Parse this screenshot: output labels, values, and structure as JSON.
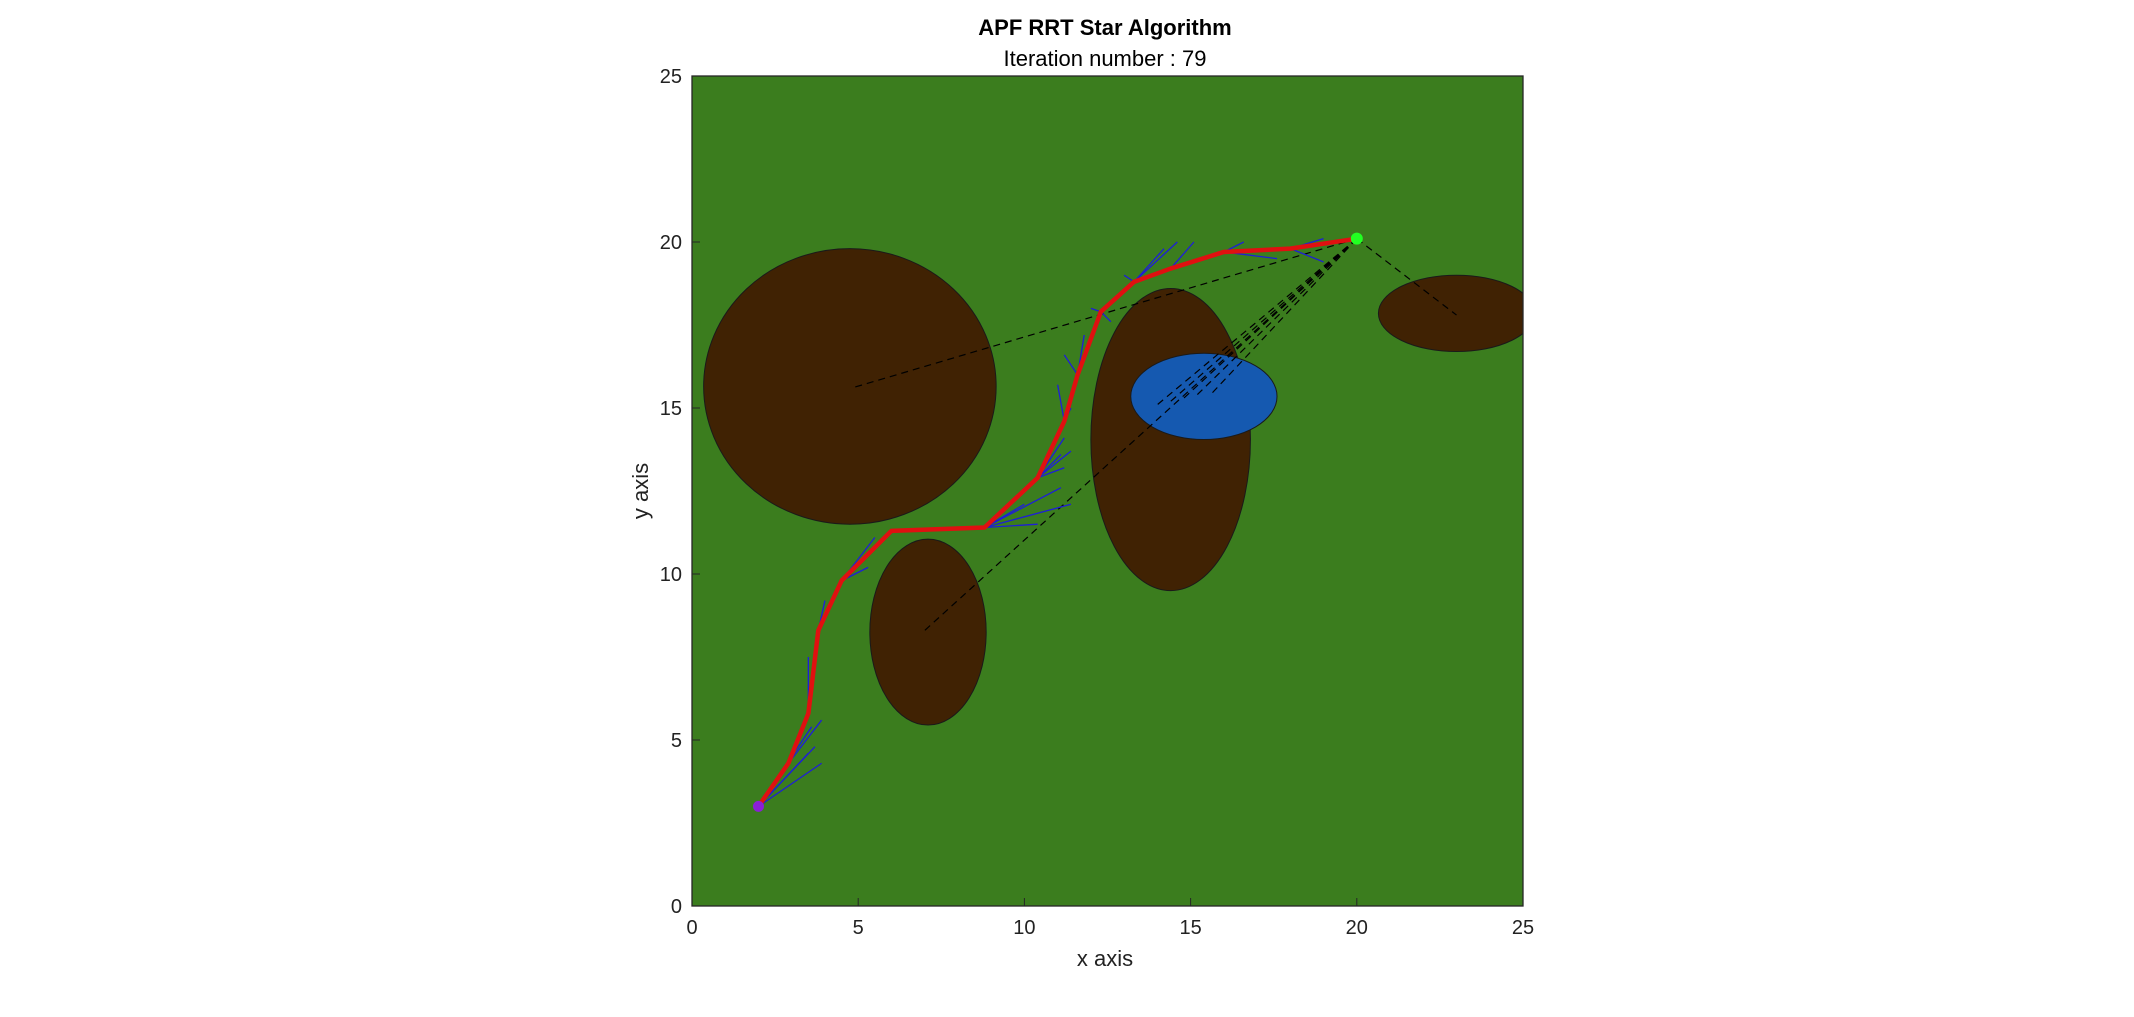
{
  "chart_data": {
    "type": "scatter",
    "title": "APF RRT Star Algorithm",
    "subtitle": "Iteration number : 79",
    "xlabel": "x axis",
    "ylabel": "y axis",
    "xlim": [
      0,
      25
    ],
    "ylim": [
      0,
      25
    ],
    "xticks": [
      "0",
      "5",
      "10",
      "15",
      "20",
      "25"
    ],
    "yticks": [
      "0",
      "5",
      "10",
      "15",
      "20",
      "25"
    ],
    "grid": false,
    "colors": {
      "background": "#3b7d1e",
      "obstacle": "#402203",
      "water": "#1559b0",
      "tree": "#1e1ed8",
      "path": "#e01010",
      "start": "#8a1fd6",
      "goal": "#22ff22",
      "dashed": "#000000"
    },
    "start": [
      2,
      3
    ],
    "goal": [
      20,
      20.1
    ],
    "obstacles": [
      {
        "kind": "ellipse",
        "cx": 4.75,
        "cy": 15.65,
        "rx": 4.4,
        "ry": 4.15,
        "fill": "#402203"
      },
      {
        "kind": "ellipse",
        "cx": 7.1,
        "cy": 8.25,
        "rx": 1.75,
        "ry": 2.8,
        "fill": "#402203"
      },
      {
        "kind": "ellipse",
        "cx": 14.4,
        "cy": 14.05,
        "rx": 2.4,
        "ry": 4.55,
        "fill": "#402203"
      },
      {
        "kind": "ellipse",
        "cx": 23.0,
        "cy": 17.85,
        "rx": 2.35,
        "ry": 1.15,
        "fill": "#402203"
      },
      {
        "kind": "ellipse",
        "cx": 15.4,
        "cy": 15.35,
        "rx": 2.2,
        "ry": 1.3,
        "fill": "#1559b0"
      }
    ],
    "path": [
      [
        2.0,
        3.0
      ],
      [
        2.9,
        4.3
      ],
      [
        3.5,
        5.8
      ],
      [
        3.8,
        8.3
      ],
      [
        4.5,
        9.8
      ],
      [
        6.0,
        11.3
      ],
      [
        8.8,
        11.4
      ],
      [
        10.4,
        12.9
      ],
      [
        11.2,
        14.6
      ],
      [
        11.6,
        16.0
      ],
      [
        12.3,
        17.9
      ],
      [
        13.3,
        18.8
      ],
      [
        14.4,
        19.2
      ],
      [
        16.0,
        19.7
      ],
      [
        18.0,
        19.8
      ],
      [
        20.0,
        20.1
      ]
    ],
    "tree_edges": [
      [
        [
          2.0,
          3.0
        ],
        [
          3.5,
          4.6
        ]
      ],
      [
        [
          2.0,
          3.0
        ],
        [
          3.7,
          4.8
        ]
      ],
      [
        [
          2.0,
          3.0
        ],
        [
          3.9,
          4.3
        ]
      ],
      [
        [
          2.0,
          3.0
        ],
        [
          3.6,
          5.4
        ]
      ],
      [
        [
          2.9,
          4.3
        ],
        [
          3.9,
          5.6
        ]
      ],
      [
        [
          3.5,
          5.8
        ],
        [
          3.5,
          7.5
        ]
      ],
      [
        [
          3.8,
          8.3
        ],
        [
          4.0,
          9.2
        ]
      ],
      [
        [
          3.8,
          8.3
        ],
        [
          4.1,
          8.9
        ]
      ],
      [
        [
          4.5,
          9.8
        ],
        [
          5.5,
          11.1
        ]
      ],
      [
        [
          4.5,
          9.8
        ],
        [
          5.3,
          10.2
        ]
      ],
      [
        [
          8.8,
          11.4
        ],
        [
          11.1,
          12.6
        ]
      ],
      [
        [
          8.8,
          11.4
        ],
        [
          11.4,
          12.1
        ]
      ],
      [
        [
          8.8,
          11.4
        ],
        [
          10.4,
          11.5
        ]
      ],
      [
        [
          8.8,
          11.4
        ],
        [
          10.0,
          12.1
        ]
      ],
      [
        [
          10.4,
          12.9
        ],
        [
          11.4,
          13.7
        ]
      ],
      [
        [
          10.4,
          12.9
        ],
        [
          11.2,
          14.1
        ]
      ],
      [
        [
          10.4,
          12.9
        ],
        [
          11.2,
          13.2
        ]
      ],
      [
        [
          10.4,
          12.9
        ],
        [
          11.1,
          13.6
        ]
      ],
      [
        [
          11.2,
          14.6
        ],
        [
          11.4,
          15.0
        ]
      ],
      [
        [
          11.2,
          14.6
        ],
        [
          11.0,
          15.7
        ]
      ],
      [
        [
          11.6,
          16.0
        ],
        [
          11.2,
          16.6
        ]
      ],
      [
        [
          11.6,
          16.0
        ],
        [
          11.8,
          17.2
        ]
      ],
      [
        [
          12.3,
          17.9
        ],
        [
          12.0,
          18.0
        ]
      ],
      [
        [
          12.3,
          17.9
        ],
        [
          12.6,
          17.6
        ]
      ],
      [
        [
          13.3,
          18.8
        ],
        [
          13.0,
          19.0
        ]
      ],
      [
        [
          13.3,
          18.8
        ],
        [
          14.2,
          19.8
        ]
      ],
      [
        [
          13.3,
          18.8
        ],
        [
          14.6,
          20.0
        ]
      ],
      [
        [
          14.4,
          19.2
        ],
        [
          15.1,
          20.0
        ]
      ],
      [
        [
          16.0,
          19.7
        ],
        [
          16.6,
          20.0
        ]
      ],
      [
        [
          16.0,
          19.7
        ],
        [
          17.6,
          19.5
        ]
      ],
      [
        [
          18.0,
          19.8
        ],
        [
          19.0,
          20.1
        ]
      ],
      [
        [
          18.0,
          19.8
        ],
        [
          19.0,
          19.4
        ]
      ]
    ],
    "dashed_lines": [
      [
        [
          20.0,
          20.1
        ],
        [
          4.8,
          15.6
        ]
      ],
      [
        [
          20.0,
          20.1
        ],
        [
          7.0,
          8.3
        ]
      ],
      [
        [
          20.0,
          20.1
        ],
        [
          14.0,
          15.1
        ]
      ],
      [
        [
          20.0,
          20.1
        ],
        [
          14.4,
          15.2
        ]
      ],
      [
        [
          20.0,
          20.1
        ],
        [
          14.8,
          15.3
        ]
      ],
      [
        [
          20.0,
          20.1
        ],
        [
          15.2,
          15.4
        ]
      ],
      [
        [
          20.0,
          20.1
        ],
        [
          15.6,
          15.4
        ]
      ],
      [
        [
          20.0,
          20.1
        ],
        [
          23.0,
          17.8
        ]
      ]
    ]
  }
}
